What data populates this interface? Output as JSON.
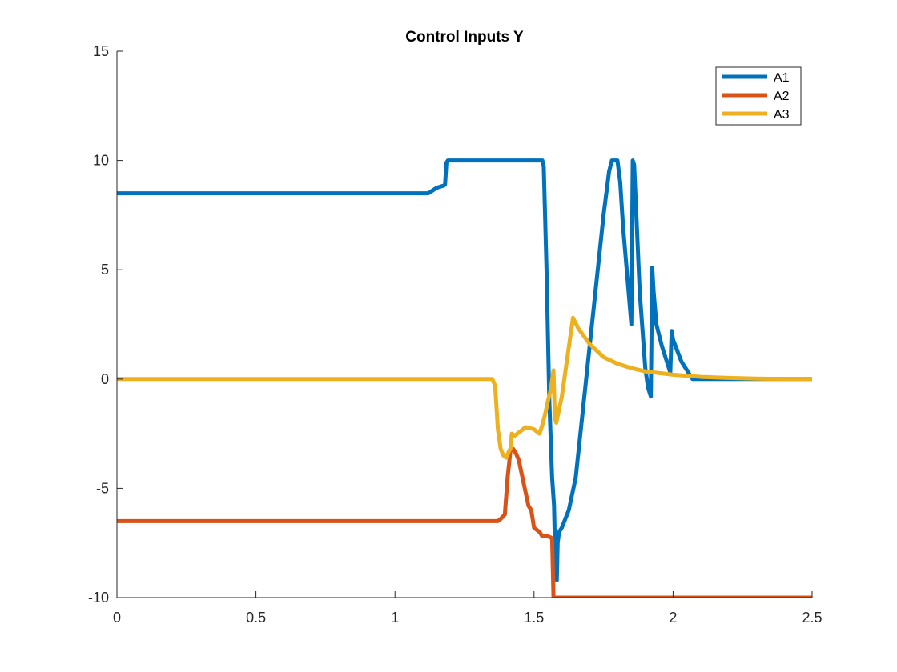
{
  "chart_data": {
    "type": "line",
    "title": "Control Inputs Y",
    "xlabel": "",
    "ylabel": "",
    "xlim": [
      0,
      2.5
    ],
    "ylim": [
      -10,
      15
    ],
    "xticks": [
      0,
      0.5,
      1,
      1.5,
      2,
      2.5
    ],
    "xtick_labels": [
      "0",
      "0.5",
      "1",
      "1.5",
      "2",
      "2.5"
    ],
    "yticks": [
      -10,
      -5,
      0,
      5,
      10,
      15
    ],
    "ytick_labels": [
      "-10",
      "-5",
      "0",
      "5",
      "10",
      "15"
    ],
    "grid": false,
    "legend_position": "top-right",
    "series": [
      {
        "name": "A1",
        "color": "#0072BD",
        "x": [
          0,
          1.12,
          1.15,
          1.175,
          1.18,
          1.185,
          1.19,
          1.3,
          1.4,
          1.5,
          1.53,
          1.535,
          1.545,
          1.555,
          1.565,
          1.572,
          1.575,
          1.578,
          1.582,
          1.585,
          1.59,
          1.6,
          1.625,
          1.65,
          1.7,
          1.75,
          1.77,
          1.78,
          1.79,
          1.8,
          1.81,
          1.82,
          1.84,
          1.85,
          1.855,
          1.86,
          1.88,
          1.9,
          1.91,
          1.92,
          1.925,
          1.93,
          1.94,
          1.96,
          1.98,
          1.99,
          1.995,
          2.0,
          2.03,
          2.06,
          2.07,
          2.1,
          2.2,
          2.3,
          2.4,
          2.5
        ],
        "y": [
          8.5,
          8.5,
          8.75,
          8.85,
          8.9,
          9.9,
          10,
          10,
          10,
          10,
          10,
          9.7,
          5.0,
          -1.0,
          -4.5,
          -5.8,
          -7.5,
          -8.8,
          -9.2,
          -7.5,
          -7.0,
          -6.8,
          -6.0,
          -4.5,
          1.5,
          7.5,
          9.5,
          10,
          10,
          10,
          9.0,
          7.0,
          4.0,
          2.5,
          10,
          9.8,
          4.0,
          0.5,
          -0.4,
          -0.8,
          5.1,
          4.0,
          2.5,
          1.5,
          0.7,
          0.3,
          2.2,
          1.8,
          0.8,
          0.2,
          0.0,
          0.0,
          0.0,
          0.0,
          0.0,
          0.0
        ]
      },
      {
        "name": "A2",
        "color": "#D95319",
        "x": [
          0,
          1.35,
          1.37,
          1.38,
          1.395,
          1.405,
          1.415,
          1.425,
          1.435,
          1.445,
          1.45,
          1.46,
          1.47,
          1.48,
          1.49,
          1.5,
          1.51,
          1.52,
          1.53,
          1.55,
          1.56,
          1.565,
          1.57,
          1.58,
          1.6,
          1.8,
          2.0,
          2.2,
          2.5
        ],
        "y": [
          -6.5,
          -6.5,
          -6.5,
          -6.4,
          -6.2,
          -4.5,
          -3.3,
          -3.2,
          -3.4,
          -3.7,
          -4.0,
          -4.6,
          -5.2,
          -5.8,
          -6.0,
          -6.8,
          -6.9,
          -7.0,
          -7.2,
          -7.2,
          -7.25,
          -7.3,
          -10,
          -10,
          -10,
          -10,
          -10,
          -10,
          -10
        ]
      },
      {
        "name": "A3",
        "color": "#EDB120",
        "x": [
          0,
          1.35,
          1.36,
          1.37,
          1.38,
          1.39,
          1.4,
          1.41,
          1.415,
          1.42,
          1.43,
          1.45,
          1.47,
          1.5,
          1.52,
          1.53,
          1.54,
          1.55,
          1.56,
          1.57,
          1.575,
          1.58,
          1.6,
          1.62,
          1.64,
          1.66,
          1.7,
          1.75,
          1.8,
          1.85,
          1.9,
          2.0,
          2.1,
          2.2,
          2.3,
          2.4,
          2.5
        ],
        "y": [
          0.0,
          0.0,
          -0.3,
          -2.3,
          -3.2,
          -3.5,
          -3.6,
          -3.3,
          -3.2,
          -2.5,
          -2.6,
          -2.4,
          -2.2,
          -2.3,
          -2.5,
          -2.1,
          -1.6,
          -1.0,
          -0.5,
          0.4,
          -1.8,
          -2.0,
          -0.8,
          1.0,
          2.8,
          2.3,
          1.6,
          1.0,
          0.7,
          0.5,
          0.35,
          0.2,
          0.1,
          0.05,
          0.02,
          0.0,
          0.0
        ]
      }
    ]
  }
}
